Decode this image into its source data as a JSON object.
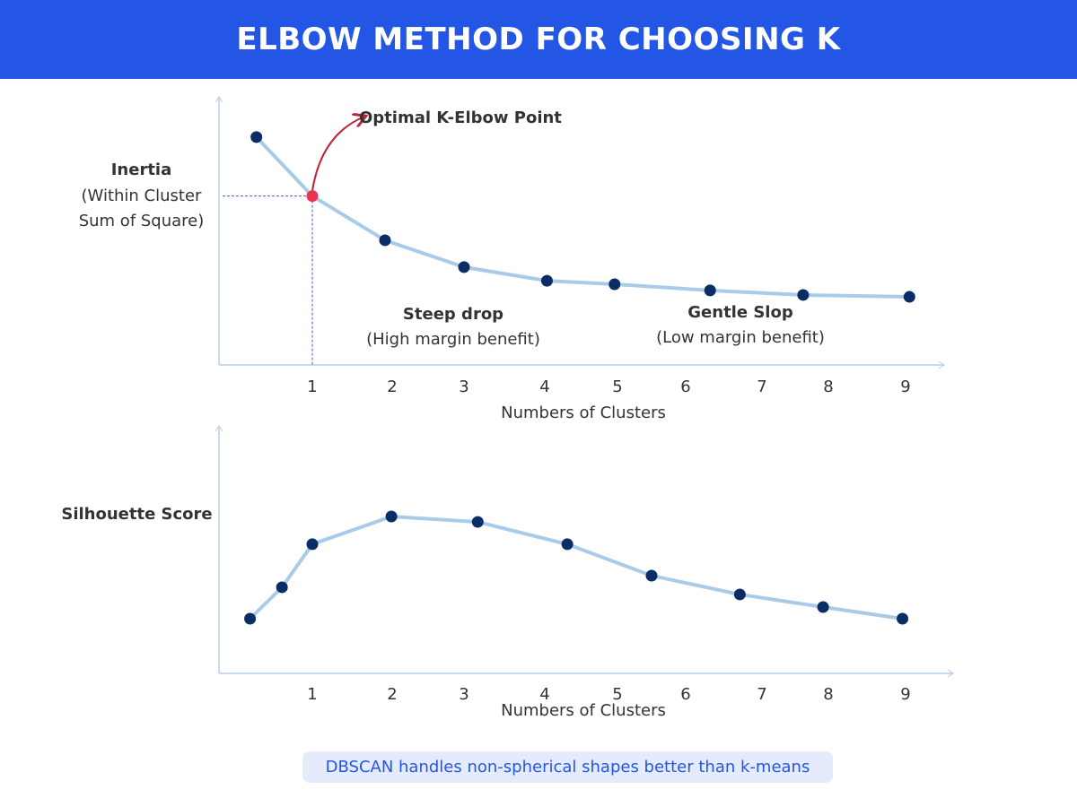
{
  "title": "ELBOW METHOD FOR CHOOSING K",
  "footer_note": "DBSCAN handles non-spherical shapes better than k-means",
  "colors": {
    "banner": "#2456e6",
    "line": "#a9cbea",
    "point": "#0a2d66",
    "highlight": "#e8344f",
    "arrow": "#c0243a",
    "axis": "#b5cde8",
    "guide": "#3b5bd6"
  },
  "chart_data": [
    {
      "type": "line",
      "ylabel_title": "Inertia",
      "ylabel_sub": [
        "(Within Cluster",
        "Sum of Square)"
      ],
      "xlabel": "Numbers of Clusters",
      "x_ticks": [
        "1",
        "2",
        "3",
        "4",
        "5",
        "6",
        "7",
        "8",
        "9"
      ],
      "ylim": [
        0,
        100
      ],
      "points": [
        {
          "x": 0.3,
          "y": 85
        },
        {
          "x": 1,
          "y": 63
        },
        {
          "x": 1.91,
          "y": 46.5
        },
        {
          "x": 3,
          "y": 36.5
        },
        {
          "x": 4.03,
          "y": 31.4
        },
        {
          "x": 4.96,
          "y": 30.1
        },
        {
          "x": 6.32,
          "y": 27.8
        },
        {
          "x": 7.62,
          "y": 26.1
        },
        {
          "x": 9.05,
          "y": 25.4
        }
      ],
      "highlight_index": 1,
      "annotations": {
        "elbow": "Optimal K-Elbow Point",
        "steep_title": "Steep drop",
        "steep_sub": "(High margin benefit)",
        "gentle_title": "Gentle Slop",
        "gentle_sub": "(Low margin benefit)"
      }
    },
    {
      "type": "line",
      "ylabel_title": "Silhouette Score",
      "xlabel": "Numbers of Clusters",
      "x_ticks": [
        "1",
        "2",
        "3",
        "4",
        "5",
        "6",
        "7",
        "8",
        "9"
      ],
      "ylim": [
        0,
        100
      ],
      "points": [
        {
          "x": 0.22,
          "y": 22.1
        },
        {
          "x": 0.62,
          "y": 34.8
        },
        {
          "x": 1,
          "y": 52.2
        },
        {
          "x": 1.99,
          "y": 63.4
        },
        {
          "x": 3.17,
          "y": 61.2
        },
        {
          "x": 4.31,
          "y": 52.2
        },
        {
          "x": 5.5,
          "y": 39.5
        },
        {
          "x": 6.71,
          "y": 31.9
        },
        {
          "x": 7.92,
          "y": 26.8
        },
        {
          "x": 8.96,
          "y": 22.1
        }
      ]
    }
  ]
}
